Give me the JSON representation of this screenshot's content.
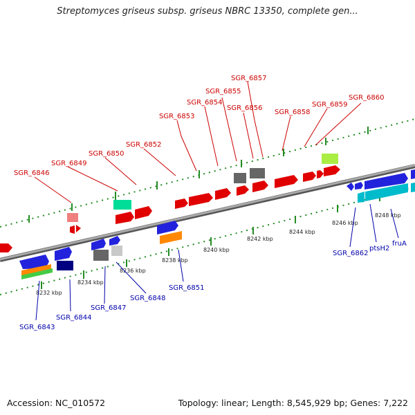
{
  "title": "Streptomyces griseus subsp. griseus NBRC 13350, complete gen...",
  "accession": "Accession: NC_010572",
  "stats": "Topology: linear; Length: 8,545,929 bp; Genes: 7,222",
  "colors": {
    "forward_label": "#cc0000",
    "reverse_label": "#0000aa",
    "track_dots": "#228b22",
    "backbone": "#808080"
  },
  "ticks": [
    "8232 kbp",
    "8234 kbp",
    "8236 kbp",
    "8238 kbp",
    "8240 kbp",
    "8242 kbp",
    "8244 kbp",
    "8246 kbp",
    "8248 kbp"
  ],
  "forward_genes": [
    "SGR_6846",
    "SGR_6849",
    "SGR_6850",
    "SGR_6852",
    "SGR_6853",
    "SGR_6854",
    "SGR_6855",
    "SGR_6856",
    "SGR_6857",
    "SGR_6858",
    "SGR_6859",
    "SGR_6860"
  ],
  "reverse_genes": [
    "SGR_6843",
    "SGR_6844",
    "SGR_6847",
    "SGR_6848",
    "SGR_6851",
    "SGR_6862",
    "ptsH2",
    "fruA"
  ]
}
